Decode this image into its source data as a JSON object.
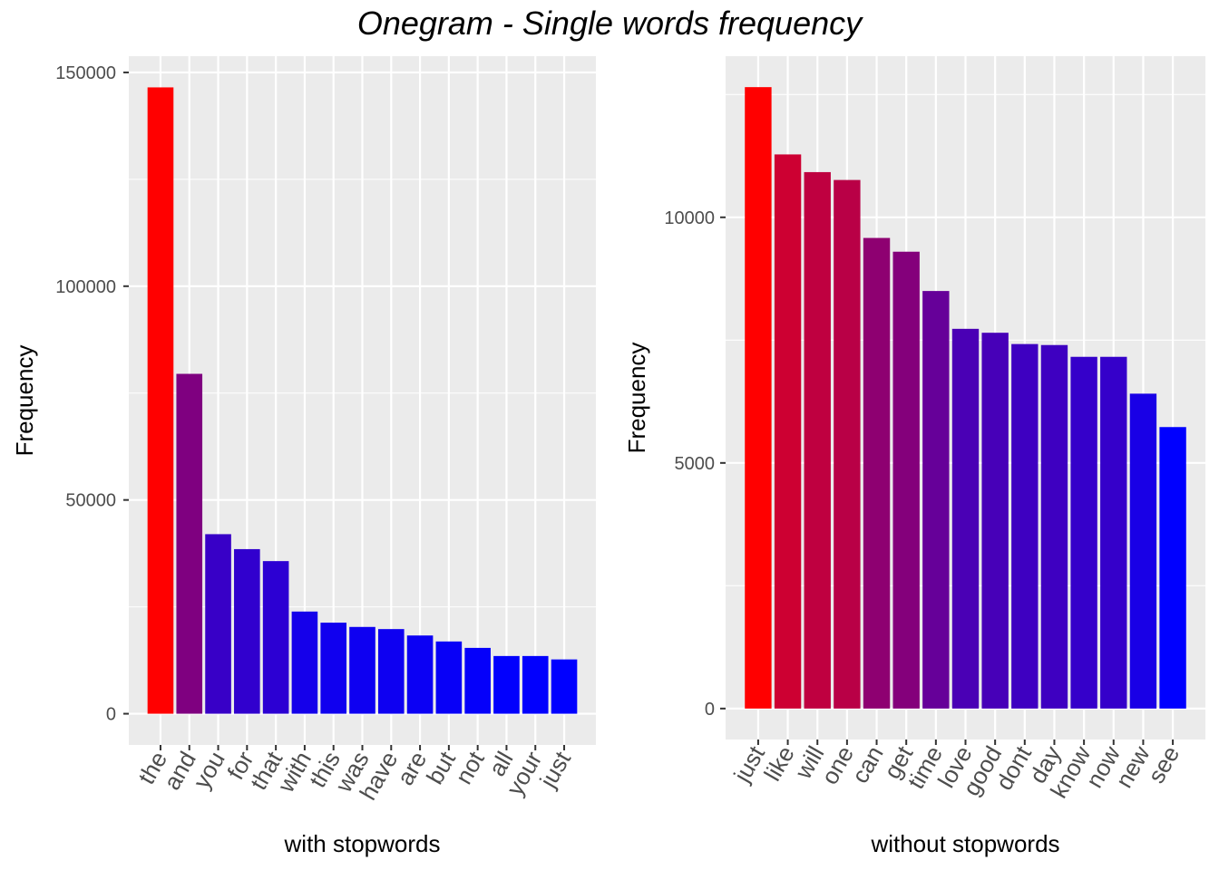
{
  "title": "Onegram - Single words frequency",
  "colors": {
    "panel_bg": "#ebebeb",
    "grid_major": "#ffffff",
    "tick_text": "#4d4d4d",
    "low": "#0000ff",
    "high": "#ff0000"
  },
  "chart_data": [
    {
      "type": "bar",
      "xlabel": "with stopwords",
      "ylabel": "Frequency",
      "categories": [
        "the",
        "and",
        "you",
        "for",
        "that",
        "with",
        "this",
        "was",
        "have",
        "are",
        "but",
        "not",
        "all",
        "your",
        "just"
      ],
      "values": [
        146500,
        79500,
        42000,
        38500,
        35700,
        23900,
        21300,
        20300,
        19800,
        18300,
        16900,
        15400,
        13500,
        13500,
        12700
      ],
      "yticks": [
        0,
        50000,
        100000,
        150000
      ],
      "ylim": [
        -7300,
        153800
      ],
      "grid": true,
      "legend": "none"
    },
    {
      "type": "bar",
      "xlabel": "without stopwords",
      "ylabel": "Frequency",
      "categories": [
        "just",
        "like",
        "will",
        "one",
        "can",
        "get",
        "time",
        "love",
        "good",
        "dont",
        "day",
        "know",
        "now",
        "new",
        "see"
      ],
      "values": [
        12650,
        11280,
        10920,
        10760,
        9580,
        9300,
        8500,
        7730,
        7650,
        7420,
        7400,
        7160,
        7160,
        6410,
        5730
      ],
      "yticks": [
        0,
        5000,
        10000
      ],
      "ylim": [
        -630,
        13280
      ],
      "grid": true,
      "legend": "none"
    }
  ]
}
